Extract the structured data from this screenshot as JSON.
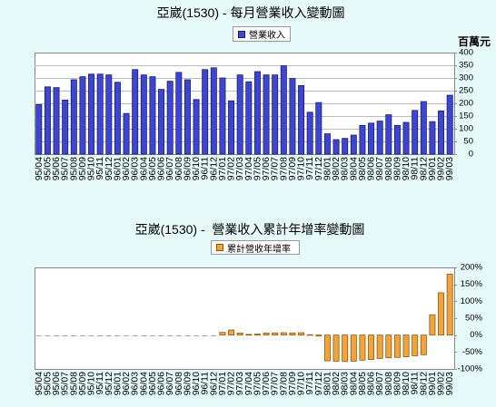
{
  "chart_data": [
    {
      "type": "bar",
      "title": "亞崴(1530) - 每月營業收入變動圖",
      "ylabel": "百萬元",
      "legend_position": "top",
      "y_axis_position": "right",
      "grid": true,
      "ylim": [
        0,
        400
      ],
      "yticks": [
        0,
        50,
        100,
        150,
        200,
        250,
        300,
        350,
        400
      ],
      "ytick_labels": [
        "0",
        "50",
        "100",
        "150",
        "200",
        "250",
        "300",
        "350",
        "400"
      ],
      "categories": [
        "95/04",
        "95/05",
        "95/06",
        "95/07",
        "95/08",
        "95/09",
        "95/10",
        "95/11",
        "95/12",
        "96/01",
        "96/02",
        "96/03",
        "96/04",
        "96/05",
        "96/06",
        "96/07",
        "96/08",
        "96/09",
        "96/10",
        "96/11",
        "96/12",
        "97/01",
        "97/02",
        "97/03",
        "97/04",
        "97/05",
        "97/06",
        "97/07",
        "97/08",
        "97/09",
        "97/10",
        "97/11",
        "97/12",
        "98/01",
        "98/02",
        "98/03",
        "98/04",
        "98/05",
        "98/06",
        "98/07",
        "98/08",
        "98/09",
        "98/10",
        "98/11",
        "98/12",
        "99/01",
        "99/02",
        "99/03"
      ],
      "series": [
        {
          "name": "營業收入",
          "color": "#3d46d2",
          "edge_color": "#1c1c70",
          "values": [
            195,
            265,
            262,
            213,
            293,
            305,
            315,
            315,
            312,
            283,
            160,
            333,
            312,
            305,
            255,
            287,
            322,
            293,
            215,
            333,
            340,
            300,
            210,
            312,
            285,
            325,
            312,
            312,
            348,
            298,
            270,
            165,
            203,
            80,
            57,
            62,
            75,
            113,
            122,
            130,
            155,
            113,
            125,
            172,
            207,
            128,
            170,
            232
          ]
        }
      ]
    },
    {
      "type": "bar",
      "title": "亞崴(1530) -  營業收入累計年增率變動圖",
      "legend_position": "top",
      "y_axis_position": "right",
      "grid": false,
      "ylim": [
        -100,
        200
      ],
      "yticks": [
        -100,
        -50,
        0,
        50,
        100,
        150,
        200
      ],
      "ytick_labels": [
        "-100%",
        "-50%",
        "0%",
        "50%",
        "100%",
        "150%",
        "200%"
      ],
      "categories": [
        "95/04",
        "95/05",
        "95/06",
        "95/07",
        "95/08",
        "95/09",
        "95/10",
        "95/11",
        "95/12",
        "96/01",
        "96/02",
        "96/03",
        "96/04",
        "96/05",
        "96/06",
        "96/07",
        "96/08",
        "96/09",
        "96/10",
        "96/11",
        "96/12",
        "97/01",
        "97/02",
        "97/03",
        "97/04",
        "97/05",
        "97/06",
        "97/07",
        "97/08",
        "97/09",
        "97/10",
        "97/11",
        "97/12",
        "98/01",
        "98/02",
        "98/03",
        "98/04",
        "98/05",
        "98/06",
        "98/07",
        "98/08",
        "98/09",
        "98/10",
        "98/11",
        "98/12",
        "99/01",
        "99/02",
        "99/03"
      ],
      "series": [
        {
          "name": "累計營收年增率",
          "color": "#f2a33c",
          "edge_color": "#8a5a12",
          "values": [
            0,
            0,
            0,
            0,
            0,
            0,
            0,
            0,
            0,
            0,
            0,
            0,
            0,
            0,
            0,
            0,
            0,
            0,
            0,
            0,
            0,
            8,
            15,
            6,
            2,
            3,
            6,
            6,
            7,
            6,
            7,
            1,
            -3,
            -76,
            -77,
            -78,
            -77,
            -74,
            -72,
            -69,
            -67,
            -66,
            -64,
            -61,
            -58,
            60,
            125,
            180
          ]
        }
      ]
    }
  ]
}
